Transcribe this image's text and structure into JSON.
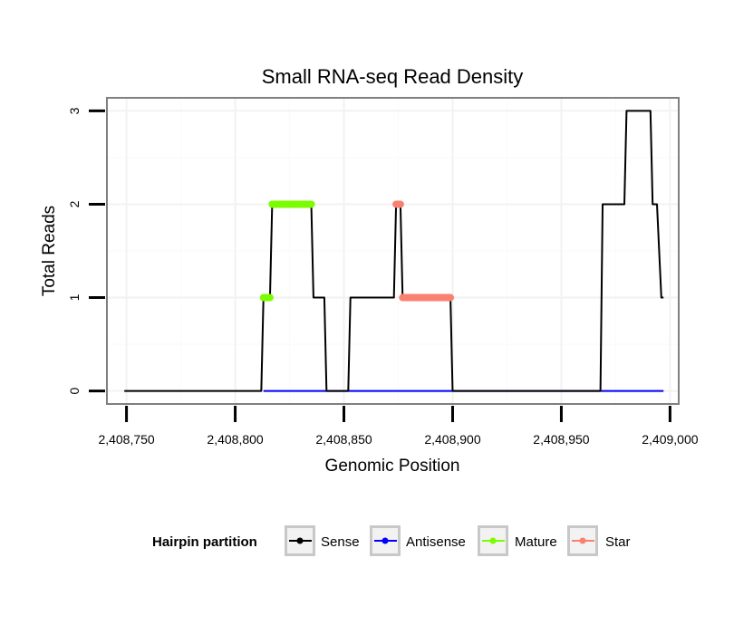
{
  "chart_data": {
    "type": "line",
    "title": "Small RNA-seq Read Density",
    "xlabel": "Genomic Position",
    "ylabel": "Total Reads",
    "xlim": [
      2408741,
      2409004
    ],
    "ylim": [
      -0.14,
      3.14
    ],
    "x_ticks": [
      2408750,
      2408800,
      2408850,
      2408900,
      2408950,
      2409000
    ],
    "x_tick_labels": [
      "2,408,750",
      "2,408,800",
      "2,408,850",
      "2,408,900",
      "2,408,950",
      "2,409,000"
    ],
    "y_ticks": [
      0,
      1,
      2,
      3
    ],
    "y_tick_labels": [
      "0",
      "1",
      "2",
      "3"
    ],
    "grid": true,
    "legend": {
      "title": "Hairpin partition",
      "position": "bottom",
      "entries": [
        "Sense",
        "Antisense",
        "Mature",
        "Star"
      ]
    },
    "series": [
      {
        "name": "Sense",
        "color": "#000000",
        "style": "step-line",
        "points": [
          [
            2408749,
            0
          ],
          [
            2408812,
            0
          ],
          [
            2408813,
            1
          ],
          [
            2408816,
            1
          ],
          [
            2408817,
            2
          ],
          [
            2408835,
            2
          ],
          [
            2408836,
            1
          ],
          [
            2408841,
            1
          ],
          [
            2408842,
            0
          ],
          [
            2408852,
            0
          ],
          [
            2408853,
            1
          ],
          [
            2408873,
            1
          ],
          [
            2408874,
            2
          ],
          [
            2408876,
            2
          ],
          [
            2408877,
            1
          ],
          [
            2408899,
            1
          ],
          [
            2408900,
            0
          ],
          [
            2408968,
            0
          ],
          [
            2408969,
            2
          ],
          [
            2408979,
            2
          ],
          [
            2408980,
            3
          ],
          [
            2408991,
            3
          ],
          [
            2408992,
            2
          ],
          [
            2408994,
            2
          ],
          [
            2408996,
            1
          ],
          [
            2408997,
            1
          ]
        ]
      },
      {
        "name": "Antisense",
        "color": "#0000ff",
        "style": "line",
        "points": [
          [
            2408813,
            0
          ],
          [
            2408997,
            0
          ]
        ]
      },
      {
        "name": "Mature",
        "color": "#7cfc00",
        "style": "thick-segments",
        "segments": [
          {
            "x": [
              2408813,
              2408816
            ],
            "y": 1
          },
          {
            "x": [
              2408817,
              2408835
            ],
            "y": 2
          }
        ]
      },
      {
        "name": "Star",
        "color": "#fa8072",
        "style": "thick-segments",
        "segments": [
          {
            "x": [
              2408874,
              2408876
            ],
            "y": 2
          },
          {
            "x": [
              2408877,
              2408899
            ],
            "y": 1
          }
        ]
      }
    ]
  }
}
